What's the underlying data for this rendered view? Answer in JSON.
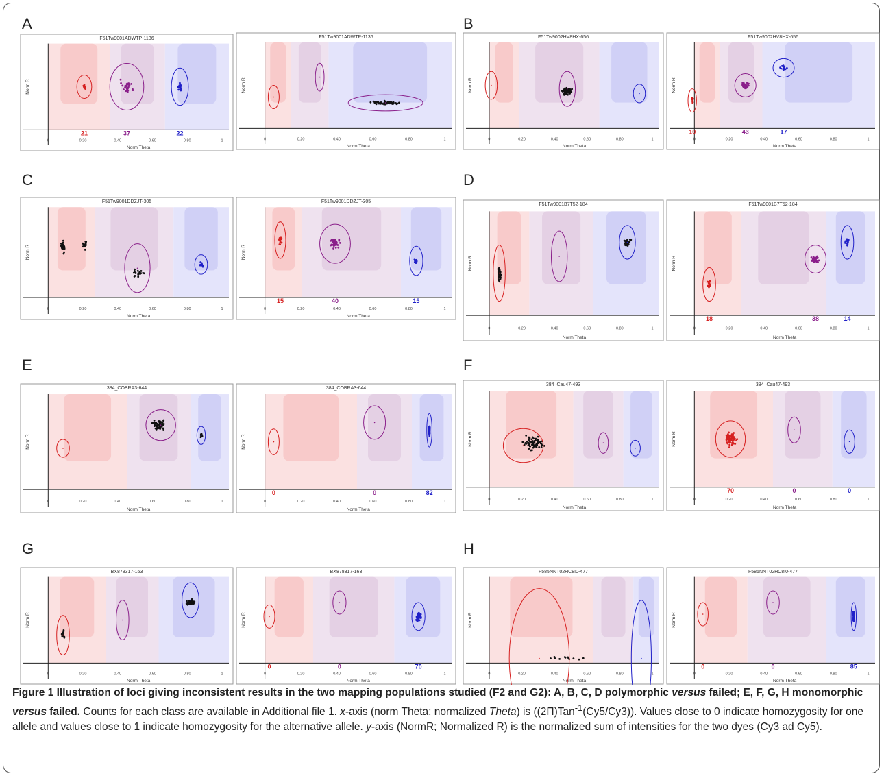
{
  "panels": [
    {
      "letter": "A",
      "plots": [
        {
          "title": "F51Tw9001ADWTP-1136",
          "x_label": "Norm Theta",
          "y_label": "Norm R",
          "counts": [
            "21",
            "37",
            "22"
          ]
        },
        {
          "title": "F51Tw9001ADWTP-1136",
          "x_label": "Norm Theta",
          "y_label": "Norm R",
          "counts": []
        }
      ]
    },
    {
      "letter": "B",
      "plots": [
        {
          "title": "F51Tw9002HV8HX-656",
          "x_label": "Norm Theta",
          "y_label": "Norm R",
          "counts": []
        },
        {
          "title": "F51Tw9002HV8HX-656",
          "x_label": "Norm Theta",
          "y_label": "Norm R",
          "counts": [
            "10",
            "43",
            "17"
          ]
        }
      ]
    },
    {
      "letter": "C",
      "plots": [
        {
          "title": "F51Tw9001DDZJT-305",
          "x_label": "Norm Theta",
          "y_label": "Norm R",
          "counts": []
        },
        {
          "title": "F51Tw9001DDZJT-305",
          "x_label": "Norm Theta",
          "y_label": "Norm R",
          "counts": [
            "15",
            "40",
            "15"
          ]
        }
      ]
    },
    {
      "letter": "D",
      "plots": [
        {
          "title": "F51Tw9001B7T52-184",
          "x_label": "Norm Theta",
          "y_label": "Norm R",
          "counts": []
        },
        {
          "title": "F51Tw9001B7T52-184",
          "x_label": "Norm Theta",
          "y_label": "Norm R",
          "counts": [
            "18",
            "38",
            "14"
          ]
        }
      ]
    },
    {
      "letter": "E",
      "plots": [
        {
          "title": "384_COBRA3-644",
          "x_label": "Norm Theta",
          "y_label": "Norm R",
          "counts": []
        },
        {
          "title": "384_COBRA3-644",
          "x_label": "Norm Theta",
          "y_label": "Norm R",
          "counts": [
            "0",
            "0",
            "82"
          ]
        }
      ]
    },
    {
      "letter": "F",
      "plots": [
        {
          "title": "384_Cau47-493",
          "x_label": "Norm Theta",
          "y_label": "Norm R",
          "counts": []
        },
        {
          "title": "384_Cau47-493",
          "x_label": "Norm Theta",
          "y_label": "Norm R",
          "counts": [
            "70",
            "0",
            "0"
          ]
        }
      ]
    },
    {
      "letter": "G",
      "plots": [
        {
          "title": "BX878317-163",
          "x_label": "Norm Theta",
          "y_label": "Norm R",
          "counts": []
        },
        {
          "title": "BX878317-163",
          "x_label": "Norm Theta",
          "y_label": "Norm R",
          "counts": [
            "0",
            "0",
            "70"
          ]
        }
      ]
    },
    {
      "letter": "H",
      "plots": [
        {
          "title": "F585NNT02HC8I0-477",
          "x_label": "Norm Theta",
          "y_label": "Norm R",
          "counts": []
        },
        {
          "title": "F585NNT02HC8I0-477",
          "x_label": "Norm Theta",
          "y_label": "Norm R",
          "counts": [
            "0",
            "0",
            "85"
          ]
        }
      ]
    }
  ],
  "x_ticks": [
    "0",
    "0.20",
    "0.40",
    "0.60",
    "0.80",
    "1"
  ],
  "caption": {
    "bold_1": "Figure 1 Illustration of loci giving inconsistent results in the two mapping populations studied (F2 and G2): A, B, C, D polymorphic ",
    "bold_italic_1": "versus",
    "bold_2": " failed; E, F, G, H monomorphic ",
    "bold_italic_2": "versus",
    "bold_3": " failed.",
    "text_1": " Counts for each class are available in Additional file 1. ",
    "italic_1": "x",
    "text_2": "-axis (norm Theta; normalized ",
    "italic_2": "Theta",
    "text_3": ") is ((2Π)Tan",
    "sup": "-1",
    "text_4": "(Cy5/Cy3)). Values close to 0 indicate homozygosity for one allele and values close to 1 indicate homozygosity for the alternative allele. ",
    "italic_3": "y",
    "text_5": "-axis (NormR; Normalized R) is the normalized sum of intensities for the two dyes (Cy3 ad Cy5)."
  }
}
